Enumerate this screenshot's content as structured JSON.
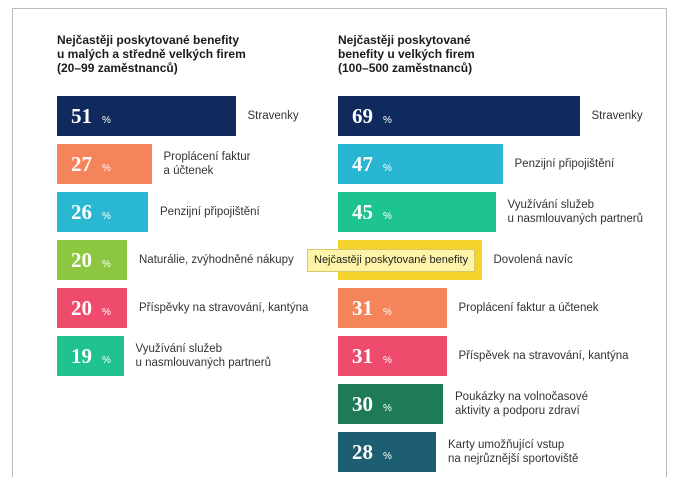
{
  "chart_data": [
    {
      "type": "bar",
      "orientation": "horizontal",
      "title": "Nejčastěji poskytované benefity\nu malých a středně velkých firem\n(20–99 zaměstnanců)",
      "categories": [
        "Stravenky",
        "Proplácení faktur\na účtenek",
        "Penzijní připojištění",
        "Naturálie, zvýhodněné nákupy",
        "Příspěvky na stravování, kantýna",
        "Využívání služeb\nu nasmlouvaných partnerů"
      ],
      "values": [
        51,
        27,
        26,
        20,
        20,
        19
      ],
      "value_unit": "%",
      "colors": [
        "#102a5e",
        "#f5845a",
        "#2ab7d2",
        "#8dc640",
        "#ef4c6d",
        "#20c28f"
      ]
    },
    {
      "type": "bar",
      "orientation": "horizontal",
      "title": "Nejčastěji poskytované\nbenefity u velkých firem\n(100–500 zaměstnanců)",
      "categories": [
        "Stravenky",
        "Penzijní připojištění",
        "Využívání služeb\nu nasmlouvaných partnerů",
        "Dovolená navíc",
        "Proplácení faktur a účtenek",
        "Příspěvek na stravování, kantýna",
        "Poukázky na volnočasové\naktivity a podporu zdraví",
        "Karty umožňující vstup\nna nejrůznější sportoviště"
      ],
      "values": [
        69,
        47,
        45,
        41,
        31,
        31,
        30,
        28
      ],
      "value_unit": "%",
      "colors": [
        "#102a5e",
        "#28b5d1",
        "#1dc48f",
        "#f5d22c",
        "#f5845a",
        "#ef4c6d",
        "#1f7a58",
        "#1d5e72"
      ]
    }
  ],
  "tooltip": "Nejčastěji poskytované benefity"
}
